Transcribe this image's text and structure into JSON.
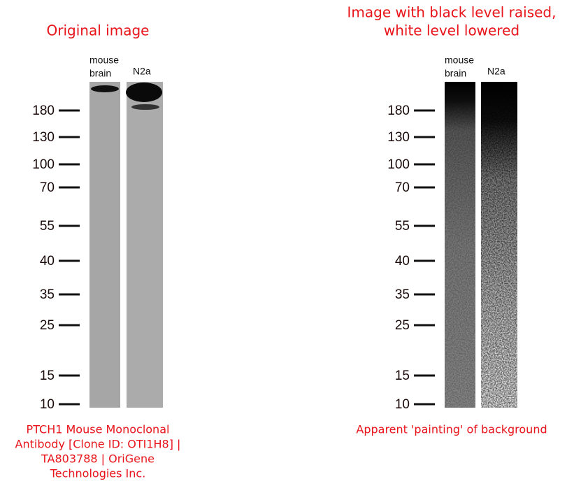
{
  "left": {
    "title": "Original image",
    "lane_labels": [
      [
        "mouse",
        "brain"
      ],
      [
        "N2a"
      ]
    ],
    "caption": [
      "PTCH1 Mouse Monoclonal",
      "Antibody [Clone ID: OTI1H8] |",
      "TA803788 | OriGene",
      "Technologies Inc."
    ]
  },
  "right": {
    "title": [
      "Image with black level raised,",
      "white level lowered"
    ],
    "lane_labels": [
      [
        "mouse",
        "brain"
      ],
      [
        "N2a"
      ]
    ],
    "caption": [
      "Apparent 'painting' of background"
    ]
  },
  "markers": [
    180,
    130,
    100,
    70,
    55,
    40,
    35,
    25,
    15,
    10
  ]
}
